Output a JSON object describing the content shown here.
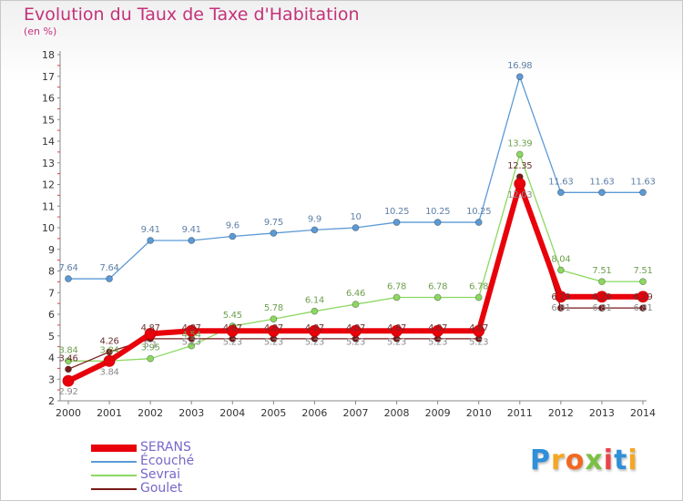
{
  "title": "Evolution du Taux de Taxe d'Habitation",
  "unit": "(en %)",
  "logo": {
    "letters": [
      "P",
      "r",
      "o",
      "x",
      "i",
      "t",
      "i"
    ],
    "colors": [
      "#2f8fd8",
      "#f5a623",
      "#f26722",
      "#7ac143",
      "#e8454a",
      "#2f8fd8",
      "#f5a623"
    ]
  },
  "chart_data": {
    "type": "line",
    "title": "Evolution du Taux de Taxe d'Habitation",
    "ylabel": "(en %)",
    "xlabel": "",
    "x": [
      "2000",
      "2001",
      "2002",
      "2003",
      "2004",
      "2005",
      "2006",
      "2007",
      "2008",
      "2009",
      "2010",
      "2011",
      "2012",
      "2013",
      "2014"
    ],
    "yticks": [
      "2",
      "3",
      "4",
      "5",
      "6",
      "7",
      "8",
      "9",
      "10",
      "11",
      "12",
      "13",
      "14",
      "15",
      "16",
      "17",
      "18"
    ],
    "ylim": [
      2,
      18
    ],
    "grid": false,
    "legend_position": "bottom-left",
    "series": [
      {
        "name": "SERANS",
        "color": "#e8000b",
        "values": [
          2.92,
          3.84,
          5.1,
          5.23,
          5.23,
          5.23,
          5.23,
          5.23,
          5.23,
          5.23,
          5.23,
          12.03,
          6.81,
          6.81,
          6.81
        ],
        "labels": [
          "2.92",
          "3.84",
          "5.1",
          "5.23",
          "5.23",
          "5.23",
          "5.23",
          "5.23",
          "5.23",
          "5.23",
          "5.23",
          "12.03",
          "6.81",
          "6.81",
          "6.81"
        ]
      },
      {
        "name": "Écouché",
        "color": "#5c9ad6",
        "values": [
          7.64,
          7.64,
          9.41,
          9.41,
          9.6,
          9.75,
          9.9,
          10,
          10.25,
          10.25,
          10.25,
          16.98,
          11.63,
          11.63,
          11.63
        ],
        "labels": [
          "7.64",
          "7.64",
          "9.41",
          "9.41",
          "9.6",
          "9.75",
          "9.9",
          "10",
          "10.25",
          "10.25",
          "10.25",
          "16.98",
          "11.63",
          "11.63",
          "11.63"
        ]
      },
      {
        "name": "Sevrai",
        "color": "#8cd860",
        "values": [
          3.84,
          3.84,
          3.95,
          4.54,
          5.45,
          5.78,
          6.14,
          6.46,
          6.78,
          6.78,
          6.78,
          13.39,
          8.04,
          7.51,
          7.51
        ],
        "labels": [
          "3.84",
          "3.84",
          "3.95",
          "4.54",
          "5.45",
          "5.78",
          "6.14",
          "6.46",
          "6.78",
          "6.78",
          "6.78",
          "13.39",
          "8.04",
          "7.51",
          "7.51"
        ]
      },
      {
        "name": "Goulet",
        "color": "#7a1a1a",
        "values": [
          3.46,
          4.26,
          4.87,
          4.87,
          4.87,
          4.87,
          4.87,
          4.87,
          4.87,
          4.87,
          4.87,
          12.35,
          6.29,
          6.29,
          6.29
        ],
        "labels": [
          "3.46",
          "4.26",
          "4.87",
          "4.87",
          "4.87",
          "4.87",
          "4.87",
          "4.87",
          "4.87",
          "4.87",
          "4.87",
          "12.35",
          "6.29",
          "6.29",
          "6.29"
        ]
      }
    ]
  }
}
